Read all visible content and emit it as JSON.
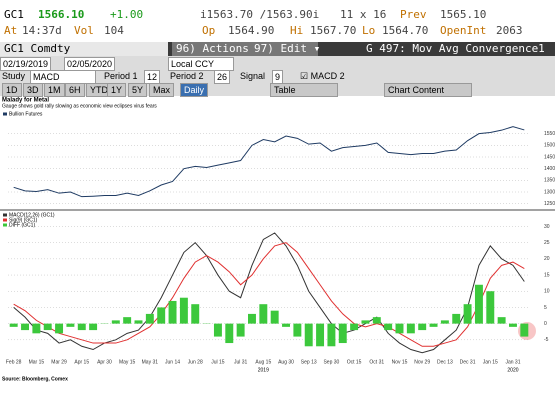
{
  "header": {
    "ticker": "GC1",
    "last": "1566.10",
    "change": "+1.00",
    "bid_ask": "i1563.70 /1563.90i",
    "size": "11 x 16",
    "prev_label": "Prev",
    "prev": "1565.10",
    "at_label": "At",
    "time": "14:37d",
    "vol_label": "Vol",
    "vol": "104",
    "op_label": "Op",
    "op": "1564.90",
    "hi_label": "Hi",
    "hi": "1567.70",
    "lo_label": "Lo",
    "lo": "1564.70",
    "oi_label": "OpenInt",
    "oi": "2063"
  },
  "toolbar": {
    "security": "GC1 Comdty",
    "actions": "96) Actions ▾",
    "edit": "97) Edit ▾",
    "function": "G 497: Mov Avg Convergence1",
    "start": "02/19/2019",
    "end": "02/05/2020",
    "currency": "Local CCY",
    "study_label": "Study",
    "study": "MACD",
    "period1_label": "Period 1",
    "period1": "12",
    "period2_label": "Period 2",
    "period2": "26",
    "signal_label": "Signal",
    "signal": "9",
    "macd2": "MACD 2",
    "ranges": [
      "1D",
      "3D",
      "1M",
      "6H",
      "YTD",
      "1Y",
      "5Y",
      "Max"
    ],
    "frequency": "Daily",
    "table": "Table",
    "chart_content": "Chart Content"
  },
  "chart_data": [
    {
      "type": "line",
      "title": "Malady for Metal",
      "subtitle": "Gauge shows gold rally slowing as economic view eclipses virus fears",
      "series": [
        {
          "name": "Bullion Futures",
          "color": "#1f3b63",
          "values": [
            1320,
            1305,
            1302,
            1310,
            1295,
            1300,
            1280,
            1282,
            1285,
            1285,
            1295,
            1285,
            1305,
            1330,
            1345,
            1400,
            1410,
            1405,
            1415,
            1425,
            1435,
            1500,
            1525,
            1515,
            1540,
            1530,
            1505,
            1510,
            1475,
            1490,
            1495,
            1500,
            1510,
            1470,
            1465,
            1460,
            1465,
            1465,
            1475,
            1480,
            1520,
            1550,
            1555,
            1565,
            1580,
            1566
          ]
        }
      ],
      "ylim": [
        1240,
        1600
      ],
      "yticks": [
        1250,
        1300,
        1350,
        1400,
        1450,
        1500,
        1550
      ]
    },
    {
      "type": "combo",
      "categories": [
        "Feb 28",
        null,
        "Mar 15",
        null,
        "Mar 29",
        null,
        "Apr 15",
        null,
        "Apr 30",
        null,
        "May 15",
        null,
        "May 31",
        null,
        "Jun 14",
        null,
        "Jun 28",
        null,
        "Jul 15",
        null,
        "Jul 31",
        null,
        "Aug 15",
        null,
        "Aug 30",
        null,
        "Sep 13",
        null,
        "Sep 30",
        null,
        "Oct 15",
        null,
        "Oct 31",
        null,
        "Nov 15",
        null,
        "Nov 29",
        null,
        "Dec 13",
        null,
        "Dec 31",
        null,
        "Jan 15",
        null,
        "Jan 31",
        null
      ],
      "series": [
        {
          "name": "MACD(12,26) (GC1)",
          "color": "#333333",
          "mark": "line",
          "values": [
            5,
            2,
            -2,
            -3,
            -6,
            -5,
            -7,
            -8,
            -6,
            -5,
            -3,
            -2,
            2,
            8,
            15,
            22,
            25,
            21,
            15,
            10,
            8,
            18,
            26,
            28,
            24,
            18,
            10,
            5,
            0,
            -3,
            -2,
            0,
            2,
            -3,
            -6,
            -8,
            -9,
            -8,
            -5,
            -2,
            5,
            18,
            24,
            20,
            18,
            13
          ]
        },
        {
          "name": "Sig(9) (GC1)",
          "color": "#e03030",
          "mark": "line",
          "values": [
            6,
            4,
            1,
            -1,
            -3,
            -4,
            -5,
            -6,
            -6,
            -6,
            -5,
            -3,
            -1,
            3,
            8,
            14,
            19,
            21,
            19,
            16,
            12,
            15,
            20,
            24,
            25,
            22,
            17,
            12,
            7,
            3,
            0,
            -1,
            0,
            -1,
            -3,
            -5,
            -7,
            -7,
            -6,
            -5,
            -1,
            6,
            14,
            18,
            19,
            17
          ]
        },
        {
          "name": "DIFF (GC1)",
          "color": "#3cc83c",
          "mark": "bar",
          "values": [
            -1,
            -2,
            -3,
            -2,
            -3,
            -1,
            -2,
            -2,
            0,
            1,
            2,
            1,
            3,
            5,
            7,
            8,
            6,
            0,
            -4,
            -6,
            -4,
            3,
            6,
            4,
            -1,
            -4,
            -7,
            -7,
            -7,
            -6,
            -2,
            1,
            2,
            -2,
            -3,
            -3,
            -2,
            -1,
            1,
            3,
            6,
            12,
            10,
            2,
            -1,
            -4
          ]
        }
      ],
      "ylim": [
        -10,
        32
      ],
      "yticks": [
        -5,
        0,
        5,
        10,
        15,
        20,
        25,
        30
      ]
    }
  ],
  "years": [
    "2019",
    "2020"
  ],
  "source": "Source: Bloomberg, Comex"
}
